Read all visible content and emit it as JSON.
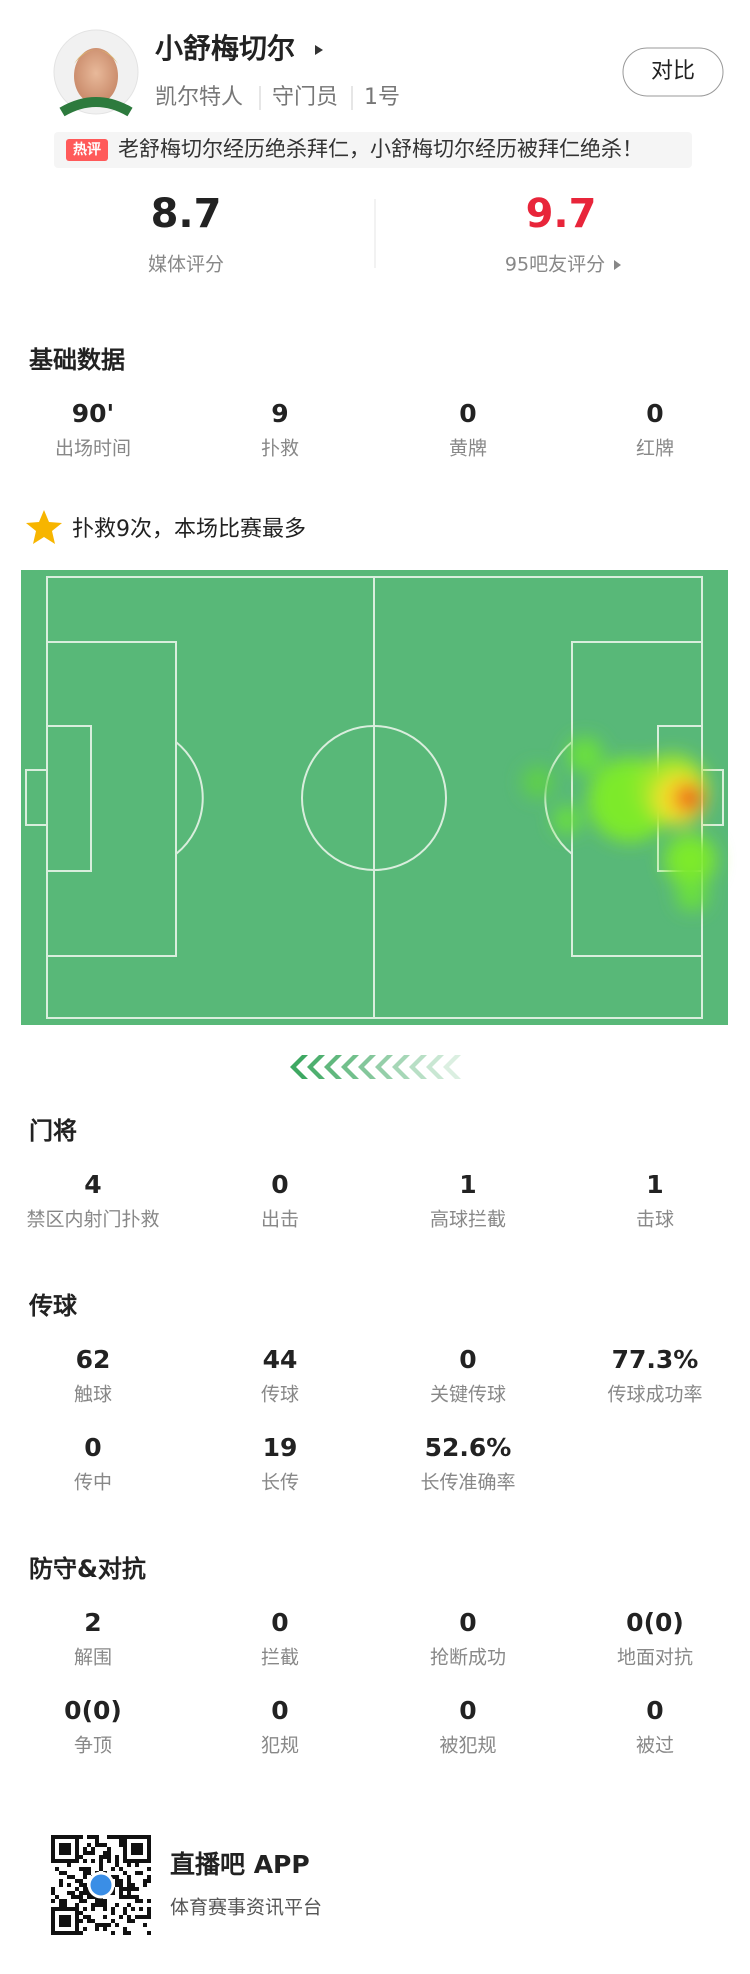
{
  "header": {
    "name": "小舒梅切尔",
    "team": "凯尔特人",
    "position": "守门员",
    "number": "1号",
    "compare_button": "对比"
  },
  "hot_comment": {
    "tag": "热评",
    "text": "老舒梅切尔经历绝杀拜仁，小舒梅切尔经历被拜仁绝杀！"
  },
  "ratings": {
    "media": {
      "value": "8.7",
      "label": "媒体评分"
    },
    "fans": {
      "value": "9.7",
      "label": "95吧友评分"
    }
  },
  "highlight": "扑救9次，本场比赛最多",
  "sections": [
    {
      "title": "基础数据",
      "stats": [
        {
          "value": "90'",
          "label": "出场时间"
        },
        {
          "value": "9",
          "label": "扑救"
        },
        {
          "value": "0",
          "label": "黄牌"
        },
        {
          "value": "0",
          "label": "红牌"
        }
      ]
    },
    {
      "title": "门将",
      "stats": [
        {
          "value": "4",
          "label": "禁区内射门扑救"
        },
        {
          "value": "0",
          "label": "出击"
        },
        {
          "value": "1",
          "label": "高球拦截"
        },
        {
          "value": "1",
          "label": "击球"
        }
      ]
    },
    {
      "title": "传球",
      "stats": [
        {
          "value": "62",
          "label": "触球"
        },
        {
          "value": "44",
          "label": "传球"
        },
        {
          "value": "0",
          "label": "关键传球"
        },
        {
          "value": "77.3%",
          "label": "传球成功率"
        },
        {
          "value": "0",
          "label": "传中"
        },
        {
          "value": "19",
          "label": "长传"
        },
        {
          "value": "52.6%",
          "label": "长传准确率"
        }
      ]
    },
    {
      "title": "防守&对抗",
      "stats": [
        {
          "value": "2",
          "label": "解围"
        },
        {
          "value": "0",
          "label": "拦截"
        },
        {
          "value": "0",
          "label": "抢断成功"
        },
        {
          "value": "0(0)",
          "label": "地面对抗"
        },
        {
          "value": "0(0)",
          "label": "争顶"
        },
        {
          "value": "0",
          "label": "犯规"
        },
        {
          "value": "0",
          "label": "被犯规"
        },
        {
          "value": "0",
          "label": "被过"
        }
      ]
    }
  ],
  "footer": {
    "app_name": "直播吧 APP",
    "slogan": "体育赛事资讯平台"
  }
}
